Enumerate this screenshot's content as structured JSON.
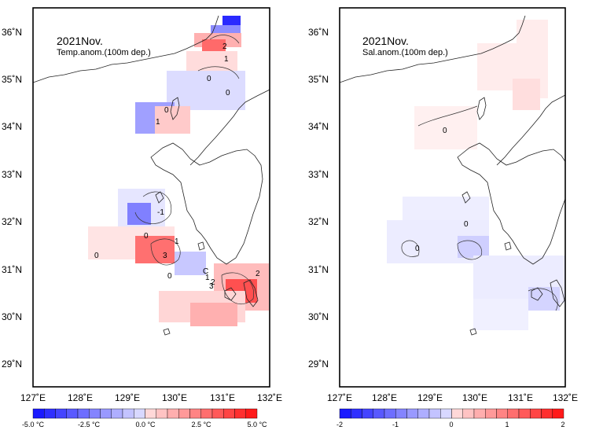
{
  "maps": [
    {
      "id": "temp",
      "title": "2021Nov.",
      "subtitle": "Temp.anom.(100m dep.)",
      "colorbar": {
        "labels": [
          "-5.0 °C",
          "-2.5 °C",
          "0.0 °C",
          "2.5 °C",
          "5.0 °C"
        ],
        "min": -5.0,
        "max": 5.0
      },
      "contour_labels": [
        "2",
        "1",
        "0",
        "0",
        "0",
        "1",
        "-1",
        "0",
        "0",
        "1",
        "3",
        "0",
        "C",
        "1",
        "2",
        "2",
        "3"
      ]
    },
    {
      "id": "sal",
      "title": "2021Nov.",
      "subtitle": "Sal.anom.(100m dep.)",
      "colorbar": {
        "labels": [
          "-2",
          "-1",
          "0",
          "1",
          "2"
        ],
        "min": -2,
        "max": 2
      },
      "contour_labels": [
        "0",
        "0",
        "0"
      ]
    }
  ],
  "axes": {
    "lon_labels": [
      "127˚E",
      "128˚E",
      "129˚E",
      "130˚E",
      "131˚E",
      "132˚E"
    ],
    "lat_labels": [
      "36˚N",
      "35˚N",
      "34˚N",
      "33˚N",
      "32˚N",
      "31˚N",
      "30˚N",
      "29˚N"
    ],
    "lon_range": [
      127,
      132
    ],
    "lat_range": [
      28.5,
      36.6
    ]
  },
  "colors": {
    "neg_strong": "#1a1aff",
    "neg_light": "#d8d8ff",
    "pos_light": "#ffd8d8",
    "pos_strong": "#ff1a1a"
  }
}
